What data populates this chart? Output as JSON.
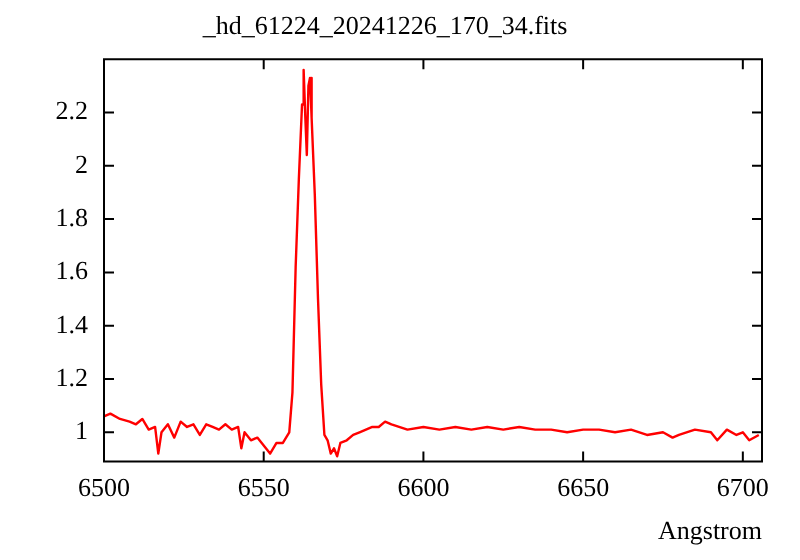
{
  "chart_data": {
    "type": "line",
    "title": "_hd_61224_20241226_170_34.fits",
    "xlabel": "Angstrom",
    "x": [
      6500,
      6502,
      6505,
      6508,
      6510,
      6512,
      6514,
      6516,
      6517,
      6518,
      6520,
      6522,
      6524,
      6526,
      6528,
      6530,
      6532,
      6534,
      6536,
      6538,
      6540,
      6542,
      6543,
      6544,
      6546,
      6548,
      6550,
      6552,
      6554,
      6556,
      6558,
      6559,
      6560,
      6561,
      6562,
      6562.5,
      6563,
      6563.5,
      6564,
      6564.5,
      6565,
      6566,
      6567,
      6568,
      6569,
      6570,
      6571,
      6572,
      6573,
      6574,
      6576,
      6578,
      6580,
      6582,
      6584,
      6586,
      6588,
      6590,
      6595,
      6600,
      6605,
      6610,
      6615,
      6620,
      6625,
      6630,
      6635,
      6640,
      6645,
      6650,
      6655,
      6660,
      6665,
      6670,
      6675,
      6678,
      6680,
      6685,
      6690,
      6692,
      6695,
      6698,
      6700,
      6702,
      6705
    ],
    "series": [
      {
        "color": "#ff0000",
        "values": [
          1.06,
          1.07,
          1.05,
          1.04,
          1.03,
          1.05,
          1.01,
          1.02,
          0.92,
          1.0,
          1.03,
          0.98,
          1.04,
          1.02,
          1.03,
          0.99,
          1.03,
          1.02,
          1.01,
          1.03,
          1.01,
          1.02,
          0.94,
          1.0,
          0.97,
          0.98,
          0.95,
          0.92,
          0.96,
          0.96,
          1.0,
          1.15,
          1.62,
          1.95,
          2.23,
          2.36,
          2.19,
          2.04,
          2.3,
          2.33,
          2.18,
          1.89,
          1.5,
          1.18,
          0.99,
          0.97,
          0.92,
          0.94,
          0.91,
          0.96,
          0.97,
          0.99,
          1.0,
          1.01,
          1.02,
          1.02,
          1.04,
          1.03,
          1.01,
          1.02,
          1.01,
          1.02,
          1.01,
          1.02,
          1.01,
          1.02,
          1.01,
          1.01,
          1.0,
          1.01,
          1.01,
          1.0,
          1.01,
          0.99,
          1.0,
          0.98,
          0.99,
          1.01,
          1.0,
          0.97,
          1.01,
          0.99,
          1.0,
          0.97,
          0.99
        ]
      }
    ],
    "xlim": [
      6500,
      6706
    ],
    "xticks": [
      6500,
      6550,
      6600,
      6650,
      6700
    ],
    "ylim": [
      0.89,
      2.4
    ],
    "yticks": [
      1,
      1.2,
      1.4,
      1.6,
      1.8,
      2,
      2.2
    ],
    "marker": "none",
    "line_style": "solid",
    "grid": false,
    "legend": false
  }
}
